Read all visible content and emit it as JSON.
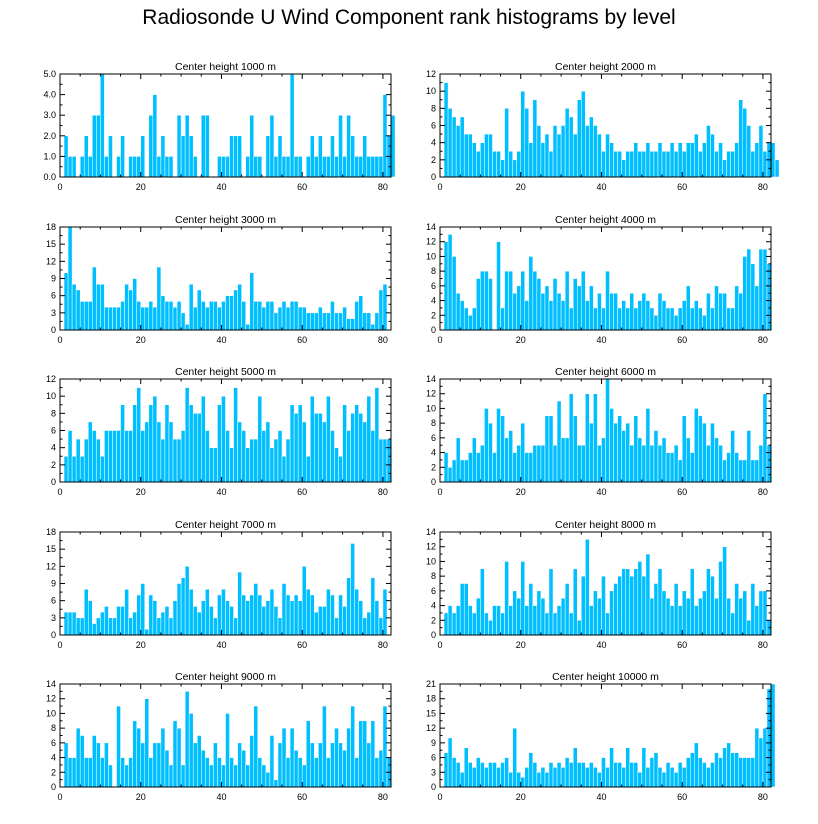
{
  "title": "Radiosonde U Wind Component rank histograms by level",
  "colors": {
    "bar": "#00bfff",
    "axis": "#000000",
    "background": "#ffffff"
  },
  "chart_data": [
    {
      "type": "bar",
      "title": "Center height 1000 m",
      "xlim": [
        0,
        82
      ],
      "ylim": [
        0,
        5
      ],
      "xticks": [
        0,
        20,
        40,
        60,
        80
      ],
      "xtick_labels": [
        "0",
        "20",
        "40",
        "60",
        "80"
      ],
      "yticks": [
        0,
        1,
        2,
        3,
        4,
        5
      ],
      "ytick_labels": [
        "0.0",
        "1.0",
        "2.0",
        "3.0",
        "4.0",
        "5.0"
      ],
      "values": [
        0,
        2,
        1,
        1,
        0,
        1,
        2,
        1,
        3,
        3,
        5,
        1,
        2,
        0,
        1,
        2,
        0,
        1,
        1,
        1,
        2,
        0,
        3,
        4,
        1,
        2,
        1,
        1,
        0,
        3,
        2,
        3,
        2,
        1,
        0,
        3,
        3,
        0,
        0,
        1,
        1,
        1,
        2,
        2,
        2,
        0,
        1,
        3,
        1,
        1,
        0,
        2,
        3,
        1,
        2,
        1,
        1,
        5,
        1,
        1,
        0,
        1,
        2,
        1,
        2,
        1,
        1,
        2,
        1,
        3,
        1,
        3,
        2,
        1,
        1,
        2,
        1,
        1,
        1,
        1,
        4,
        2,
        3
      ]
    },
    {
      "type": "bar",
      "title": "Center height 2000 m",
      "xlim": [
        0,
        82
      ],
      "ylim": [
        0,
        12
      ],
      "xticks": [
        0,
        20,
        40,
        60,
        80
      ],
      "xtick_labels": [
        "0",
        "20",
        "40",
        "60",
        "80"
      ],
      "yticks": [
        0,
        2,
        4,
        6,
        8,
        10,
        12
      ],
      "ytick_labels": [
        "0",
        "2",
        "4",
        "6",
        "8",
        "10",
        "12"
      ],
      "values": [
        0,
        11,
        8,
        7,
        6,
        7,
        5,
        5,
        4,
        3,
        4,
        5,
        5,
        3,
        3,
        2,
        8,
        3,
        2,
        3,
        10,
        8,
        4,
        9,
        6,
        4,
        5,
        3,
        6,
        5,
        6,
        8,
        7,
        5,
        9,
        10,
        6,
        7,
        6,
        5,
        3,
        5,
        4,
        3,
        3,
        2,
        3,
        3,
        4,
        3,
        3,
        4,
        3,
        3,
        4,
        3,
        3,
        4,
        3,
        4,
        3,
        4,
        4,
        5,
        3,
        4,
        6,
        5,
        3,
        4,
        2,
        3,
        3,
        4,
        9,
        8,
        6,
        3,
        4,
        6,
        3,
        4,
        4,
        2
      ]
    },
    {
      "type": "bar",
      "title": "Center height 3000 m",
      "xlim": [
        0,
        82
      ],
      "ylim": [
        0,
        18
      ],
      "xticks": [
        0,
        20,
        40,
        60,
        80
      ],
      "xtick_labels": [
        "0",
        "20",
        "40",
        "60",
        "80"
      ],
      "yticks": [
        0,
        3,
        6,
        9,
        12,
        15,
        18
      ],
      "ytick_labels": [
        "0",
        "3",
        "6",
        "9",
        "12",
        "15",
        "18"
      ],
      "values": [
        0,
        10,
        18,
        8,
        7,
        5,
        5,
        5,
        11,
        8,
        8,
        4,
        4,
        4,
        4,
        5,
        8,
        7,
        9,
        5,
        4,
        4,
        5,
        4,
        11,
        6,
        5,
        5,
        4,
        5,
        3,
        1,
        8,
        4,
        7,
        5,
        4,
        5,
        5,
        4,
        5,
        6,
        6,
        7,
        8,
        5,
        1,
        10,
        5,
        5,
        4,
        5,
        5,
        3,
        4,
        5,
        4,
        5,
        5,
        4,
        4,
        3,
        3,
        3,
        4,
        3,
        3,
        5,
        3,
        3,
        4,
        2,
        2,
        5,
        6,
        3,
        3,
        1,
        3,
        7,
        8,
        0,
        0
      ]
    },
    {
      "type": "bar",
      "title": "Center height 4000 m",
      "xlim": [
        0,
        82
      ],
      "ylim": [
        0,
        14
      ],
      "xticks": [
        0,
        20,
        40,
        60,
        80
      ],
      "xtick_labels": [
        "0",
        "20",
        "40",
        "60",
        "80"
      ],
      "yticks": [
        0,
        2,
        4,
        6,
        8,
        10,
        12,
        14
      ],
      "ytick_labels": [
        "0",
        "2",
        "4",
        "6",
        "8",
        "10",
        "12",
        "14"
      ],
      "values": [
        0,
        12,
        13,
        10,
        5,
        4,
        3,
        2,
        3,
        7,
        8,
        8,
        7,
        0,
        12,
        3,
        8,
        8,
        5,
        6,
        8,
        4,
        10,
        8,
        7,
        5,
        6,
        4,
        7,
        5,
        4,
        8,
        3,
        7,
        6,
        8,
        4,
        6,
        3,
        5,
        3,
        8,
        5,
        5,
        3,
        4,
        3,
        5,
        3,
        4,
        5,
        4,
        3,
        2,
        5,
        4,
        3,
        3,
        2,
        3,
        4,
        6,
        3,
        4,
        3,
        2,
        5,
        3,
        6,
        5,
        5,
        3,
        3,
        6,
        5,
        10,
        11,
        9,
        6,
        11,
        11,
        9,
        0
      ]
    },
    {
      "type": "bar",
      "title": "Center height 5000 m",
      "xlim": [
        0,
        82
      ],
      "ylim": [
        0,
        12
      ],
      "xticks": [
        0,
        20,
        40,
        60,
        80
      ],
      "xtick_labels": [
        "0",
        "20",
        "40",
        "60",
        "80"
      ],
      "yticks": [
        0,
        2,
        4,
        6,
        8,
        10,
        12
      ],
      "ytick_labels": [
        "0",
        "2",
        "4",
        "6",
        "8",
        "10",
        "12"
      ],
      "values": [
        0,
        3,
        6,
        3,
        5,
        3,
        5,
        7,
        6,
        5,
        3,
        6,
        6,
        6,
        6,
        9,
        6,
        6,
        9,
        11,
        6,
        7,
        9,
        10,
        7,
        5,
        9,
        7,
        5,
        5,
        6,
        11,
        9,
        8,
        8,
        10,
        6,
        4,
        4,
        9,
        10,
        6,
        4,
        11,
        7,
        6,
        4,
        5,
        5,
        10,
        6,
        7,
        4,
        5,
        6,
        3,
        5,
        9,
        8,
        9,
        7,
        3,
        10,
        8,
        8,
        7,
        10,
        6,
        4,
        3,
        9,
        6,
        8,
        9,
        8,
        7,
        10,
        6,
        11,
        5,
        5,
        5,
        0
      ]
    },
    {
      "type": "bar",
      "title": "Center height 6000 m",
      "xlim": [
        0,
        82
      ],
      "ylim": [
        0,
        14
      ],
      "xticks": [
        0,
        20,
        40,
        60,
        80
      ],
      "xtick_labels": [
        "0",
        "20",
        "40",
        "60",
        "80"
      ],
      "yticks": [
        0,
        2,
        4,
        6,
        8,
        10,
        12,
        14
      ],
      "ytick_labels": [
        "0",
        "2",
        "4",
        "6",
        "8",
        "10",
        "12",
        "14"
      ],
      "values": [
        0,
        4,
        2,
        3,
        6,
        3,
        3,
        4,
        6,
        4,
        5,
        10,
        8,
        4,
        10,
        9,
        6,
        7,
        4,
        5,
        8,
        4,
        4,
        5,
        5,
        5,
        9,
        9,
        5,
        11,
        6,
        6,
        12,
        9,
        5,
        5,
        12,
        8,
        12,
        5,
        6,
        14,
        10,
        8,
        9,
        7,
        8,
        5,
        9,
        6,
        5,
        10,
        5,
        7,
        5,
        6,
        4,
        4,
        5,
        3,
        9,
        6,
        4,
        10,
        9,
        8,
        5,
        8,
        6,
        5,
        3,
        4,
        7,
        4,
        3,
        3,
        7,
        3,
        3,
        5,
        12,
        5,
        0
      ]
    },
    {
      "type": "bar",
      "title": "Center height 7000 m",
      "xlim": [
        0,
        82
      ],
      "ylim": [
        0,
        18
      ],
      "xticks": [
        0,
        20,
        40,
        60,
        80
      ],
      "xtick_labels": [
        "0",
        "20",
        "40",
        "60",
        "80"
      ],
      "yticks": [
        0,
        3,
        6,
        9,
        12,
        15,
        18
      ],
      "ytick_labels": [
        "0",
        "3",
        "6",
        "9",
        "12",
        "15",
        "18"
      ],
      "values": [
        0,
        4,
        4,
        4,
        3,
        3,
        8,
        6,
        2,
        3,
        4,
        5,
        3,
        3,
        5,
        5,
        8,
        3,
        4,
        7,
        9,
        1,
        7,
        6,
        3,
        4,
        5,
        3,
        6,
        9,
        10,
        12,
        8,
        5,
        4,
        6,
        8,
        5,
        3,
        7,
        8,
        6,
        5,
        3,
        11,
        7,
        6,
        7,
        9,
        7,
        5,
        6,
        8,
        5,
        3,
        9,
        7,
        6,
        7,
        6,
        12,
        8,
        7,
        4,
        5,
        5,
        8,
        7,
        3,
        7,
        5,
        10,
        16,
        8,
        6,
        3,
        4,
        10,
        6,
        3,
        8,
        0,
        0
      ]
    },
    {
      "type": "bar",
      "title": "Center height 8000 m",
      "xlim": [
        0,
        82
      ],
      "ylim": [
        0,
        14
      ],
      "xticks": [
        0,
        20,
        40,
        60,
        80
      ],
      "xtick_labels": [
        "0",
        "20",
        "40",
        "60",
        "80"
      ],
      "yticks": [
        0,
        2,
        4,
        6,
        8,
        10,
        12,
        14
      ],
      "ytick_labels": [
        "0",
        "2",
        "4",
        "6",
        "8",
        "10",
        "12",
        "14"
      ],
      "values": [
        0,
        3,
        4,
        3,
        4,
        7,
        7,
        4,
        3,
        5,
        9,
        3,
        2,
        4,
        4,
        3,
        10,
        4,
        6,
        5,
        10,
        4,
        7,
        4,
        6,
        5,
        3,
        9,
        3,
        4,
        5,
        7,
        3,
        9,
        2,
        8,
        13,
        4,
        6,
        5,
        8,
        3,
        6,
        7,
        8,
        9,
        9,
        8,
        9,
        10,
        8,
        11,
        5,
        7,
        9,
        6,
        5,
        4,
        7,
        4,
        6,
        5,
        9,
        4,
        5,
        6,
        9,
        8,
        5,
        10,
        12,
        5,
        3,
        7,
        5,
        6,
        2,
        7,
        4,
        6,
        6,
        2,
        0
      ]
    },
    {
      "type": "bar",
      "title": "Center height 9000 m",
      "xlim": [
        0,
        82
      ],
      "ylim": [
        0,
        14
      ],
      "xticks": [
        0,
        20,
        40,
        60,
        80
      ],
      "xtick_labels": [
        "0",
        "20",
        "40",
        "60",
        "80"
      ],
      "yticks": [
        0,
        2,
        4,
        6,
        8,
        10,
        12,
        14
      ],
      "ytick_labels": [
        "0",
        "2",
        "4",
        "6",
        "8",
        "10",
        "12",
        "14"
      ],
      "values": [
        0,
        6,
        4,
        4,
        8,
        7,
        4,
        4,
        7,
        6,
        4,
        6,
        3,
        0,
        11,
        4,
        3,
        4,
        9,
        8,
        6,
        12,
        4,
        6,
        6,
        8,
        5,
        3,
        9,
        8,
        3,
        13,
        10,
        6,
        7,
        5,
        4,
        3,
        6,
        4,
        3,
        10,
        4,
        3,
        6,
        5,
        3,
        7,
        11,
        4,
        3,
        2,
        7,
        1,
        6,
        8,
        4,
        8,
        5,
        4,
        3,
        9,
        6,
        4,
        6,
        11,
        4,
        6,
        8,
        6,
        5,
        8,
        11,
        4,
        9,
        9,
        6,
        9,
        4,
        5,
        11,
        4,
        0
      ]
    },
    {
      "type": "bar",
      "title": "Center height 10000 m",
      "xlim": [
        0,
        82
      ],
      "ylim": [
        0,
        21
      ],
      "xticks": [
        0,
        20,
        40,
        60,
        80
      ],
      "xtick_labels": [
        "0",
        "20",
        "40",
        "60",
        "80"
      ],
      "yticks": [
        0,
        3,
        6,
        9,
        12,
        15,
        18,
        21
      ],
      "ytick_labels": [
        "0",
        "3",
        "6",
        "9",
        "12",
        "15",
        "18",
        "21"
      ],
      "values": [
        0,
        7,
        10,
        6,
        5,
        3,
        8,
        5,
        4,
        6,
        5,
        4,
        5,
        5,
        4,
        5,
        6,
        3,
        12,
        3,
        2,
        4,
        7,
        5,
        3,
        4,
        3,
        5,
        4,
        5,
        4,
        6,
        5,
        8,
        5,
        5,
        4,
        5,
        4,
        3,
        6,
        4,
        8,
        5,
        5,
        4,
        8,
        5,
        5,
        3,
        8,
        4,
        6,
        7,
        4,
        3,
        5,
        4,
        3,
        5,
        4,
        6,
        7,
        9,
        6,
        5,
        4,
        5,
        7,
        6,
        8,
        9,
        7,
        7,
        6,
        6,
        6,
        6,
        12,
        10,
        12,
        20,
        21
      ]
    }
  ]
}
